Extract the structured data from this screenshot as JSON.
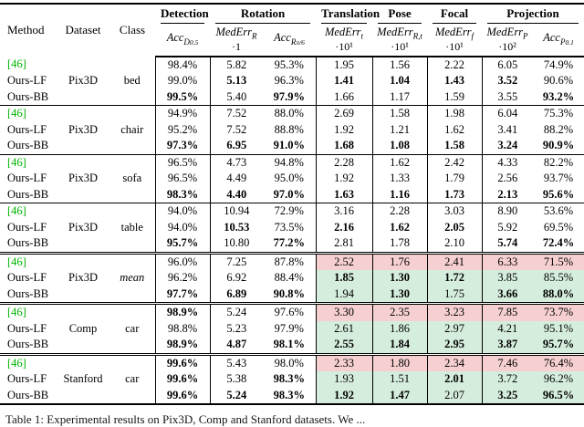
{
  "colors": {
    "cite_green": "#00b400",
    "highlight_red": "#f6d0d0",
    "highlight_green": "#d5eddd",
    "rule_black": "#000000",
    "background": "#ffffff"
  },
  "caption": "Table 1: Experimental results on Pix3D, Comp and Stanford datasets. We ...",
  "table": {
    "header": {
      "method": "Method",
      "dataset": "Dataset",
      "class": "Class",
      "groups": [
        {
          "label": "Detection",
          "span": 1
        },
        {
          "label": "Rotation",
          "span": 2
        },
        {
          "label": "Translation",
          "span": 1
        },
        {
          "label": "Pose",
          "span": 1
        },
        {
          "label": "Focal",
          "span": 1
        },
        {
          "label": "Projection",
          "span": 2
        }
      ],
      "cols": [
        {
          "key": "acc-d05",
          "fn": "Acc",
          "sub": "D",
          "ssub": "0.5",
          "mult": ""
        },
        {
          "key": "mederr-r",
          "fn": "MedErr",
          "sub": "R",
          "ssub": "",
          "mult": "·1"
        },
        {
          "key": "acc-r-pi6",
          "fn": "Acc",
          "sub": "R",
          "ssub": "π/6",
          "mult": ""
        },
        {
          "key": "mederr-t",
          "fn": "MedErr",
          "sub": "t",
          "ssub": "",
          "mult": "·10¹"
        },
        {
          "key": "mederr-rt",
          "fn": "MedErr",
          "sub": "R,t",
          "ssub": "",
          "mult": "·10¹"
        },
        {
          "key": "mederr-f",
          "fn": "MedErr",
          "sub": "f",
          "ssub": "",
          "mult": "·10¹"
        },
        {
          "key": "mederr-p",
          "fn": "MedErr",
          "sub": "P",
          "ssub": "",
          "mult": "·10²"
        },
        {
          "key": "acc-p01",
          "fn": "Acc",
          "sub": "P",
          "ssub": "0.1",
          "mult": ""
        }
      ]
    },
    "groups": [
      {
        "dataset": "Pix3D",
        "class": "bed",
        "italic_class": false,
        "highlight": false,
        "sep": "none",
        "rows": [
          {
            "method": "[46]",
            "cite": true,
            "vals": [
              "98.4%",
              "5.82",
              "95.3%",
              "1.95",
              "1.56",
              "2.22",
              "6.05",
              "74.9%"
            ],
            "bold": [
              0,
              0,
              0,
              0,
              0,
              0,
              0,
              0
            ]
          },
          {
            "method": "Ours-LF",
            "cite": false,
            "vals": [
              "99.0%",
              "5.13",
              "96.3%",
              "1.41",
              "1.04",
              "1.43",
              "3.52",
              "90.6%"
            ],
            "bold": [
              0,
              1,
              0,
              1,
              1,
              1,
              1,
              0
            ]
          },
          {
            "method": "Ours-BB",
            "cite": false,
            "vals": [
              "99.5%",
              "5.40",
              "97.9%",
              "1.66",
              "1.17",
              "1.59",
              "3.55",
              "93.2%"
            ],
            "bold": [
              1,
              0,
              1,
              0,
              0,
              0,
              0,
              1
            ]
          }
        ]
      },
      {
        "dataset": "Pix3D",
        "class": "chair",
        "italic_class": false,
        "highlight": false,
        "sep": "single",
        "rows": [
          {
            "method": "[46]",
            "cite": true,
            "vals": [
              "94.9%",
              "7.52",
              "88.0%",
              "2.69",
              "1.58",
              "1.98",
              "6.04",
              "75.3%"
            ],
            "bold": [
              0,
              0,
              0,
              0,
              0,
              0,
              0,
              0
            ]
          },
          {
            "method": "Ours-LF",
            "cite": false,
            "vals": [
              "95.2%",
              "7.52",
              "88.8%",
              "1.92",
              "1.21",
              "1.62",
              "3.41",
              "88.2%"
            ],
            "bold": [
              0,
              0,
              0,
              0,
              0,
              0,
              0,
              0
            ]
          },
          {
            "method": "Ours-BB",
            "cite": false,
            "vals": [
              "97.3%",
              "6.95",
              "91.0%",
              "1.68",
              "1.08",
              "1.58",
              "3.24",
              "90.9%"
            ],
            "bold": [
              1,
              1,
              1,
              1,
              1,
              1,
              1,
              1
            ]
          }
        ]
      },
      {
        "dataset": "Pix3D",
        "class": "sofa",
        "italic_class": false,
        "highlight": false,
        "sep": "single",
        "rows": [
          {
            "method": "[46]",
            "cite": true,
            "vals": [
              "96.5%",
              "4.73",
              "94.8%",
              "2.28",
              "1.62",
              "2.42",
              "4.33",
              "82.2%"
            ],
            "bold": [
              0,
              0,
              0,
              0,
              0,
              0,
              0,
              0
            ]
          },
          {
            "method": "Ours-LF",
            "cite": false,
            "vals": [
              "96.5%",
              "4.49",
              "95.0%",
              "1.92",
              "1.33",
              "1.79",
              "2.56",
              "93.7%"
            ],
            "bold": [
              0,
              0,
              0,
              0,
              0,
              0,
              0,
              0
            ]
          },
          {
            "method": "Ours-BB",
            "cite": false,
            "vals": [
              "98.3%",
              "4.40",
              "97.0%",
              "1.63",
              "1.16",
              "1.73",
              "2.13",
              "95.6%"
            ],
            "bold": [
              1,
              1,
              1,
              1,
              1,
              1,
              1,
              1
            ]
          }
        ]
      },
      {
        "dataset": "Pix3D",
        "class": "table",
        "italic_class": false,
        "highlight": false,
        "sep": "single",
        "rows": [
          {
            "method": "[46]",
            "cite": true,
            "vals": [
              "94.0%",
              "10.94",
              "72.9%",
              "3.16",
              "2.28",
              "3.03",
              "8.90",
              "53.6%"
            ],
            "bold": [
              0,
              0,
              0,
              0,
              0,
              0,
              0,
              0
            ]
          },
          {
            "method": "Ours-LF",
            "cite": false,
            "vals": [
              "94.0%",
              "10.53",
              "73.5%",
              "2.16",
              "1.62",
              "2.05",
              "5.92",
              "69.5%"
            ],
            "bold": [
              0,
              1,
              0,
              1,
              1,
              1,
              0,
              0
            ]
          },
          {
            "method": "Ours-BB",
            "cite": false,
            "vals": [
              "95.7%",
              "10.80",
              "77.2%",
              "2.81",
              "1.78",
              "2.10",
              "5.74",
              "72.4%"
            ],
            "bold": [
              1,
              0,
              1,
              0,
              0,
              0,
              1,
              1
            ]
          }
        ]
      },
      {
        "dataset": "Pix3D",
        "class": "mean",
        "italic_class": true,
        "highlight": true,
        "sep": "double",
        "rows": [
          {
            "method": "[46]",
            "cite": true,
            "vals": [
              "96.0%",
              "7.25",
              "87.8%",
              "2.52",
              "1.76",
              "2.41",
              "6.33",
              "71.5%"
            ],
            "bold": [
              0,
              0,
              0,
              0,
              0,
              0,
              0,
              0
            ]
          },
          {
            "method": "Ours-LF",
            "cite": false,
            "vals": [
              "96.2%",
              "6.92",
              "88.4%",
              "1.85",
              "1.30",
              "1.72",
              "3.85",
              "85.5%"
            ],
            "bold": [
              0,
              0,
              0,
              1,
              1,
              1,
              0,
              0
            ]
          },
          {
            "method": "Ours-BB",
            "cite": false,
            "vals": [
              "97.7%",
              "6.89",
              "90.8%",
              "1.94",
              "1.30",
              "1.75",
              "3.66",
              "88.0%"
            ],
            "bold": [
              1,
              1,
              1,
              0,
              1,
              0,
              1,
              1
            ]
          }
        ]
      },
      {
        "dataset": "Comp",
        "class": "car",
        "italic_class": false,
        "highlight": true,
        "sep": "double",
        "rows": [
          {
            "method": "[46]",
            "cite": true,
            "vals": [
              "98.9%",
              "5.24",
              "97.6%",
              "3.30",
              "2.35",
              "3.23",
              "7.85",
              "73.7%"
            ],
            "bold": [
              1,
              0,
              0,
              0,
              0,
              0,
              0,
              0
            ]
          },
          {
            "method": "Ours-LF",
            "cite": false,
            "vals": [
              "98.8%",
              "5.23",
              "97.9%",
              "2.61",
              "1.86",
              "2.97",
              "4.21",
              "95.1%"
            ],
            "bold": [
              0,
              0,
              0,
              0,
              0,
              0,
              0,
              0
            ]
          },
          {
            "method": "Ours-BB",
            "cite": false,
            "vals": [
              "98.9%",
              "4.87",
              "98.1%",
              "2.55",
              "1.84",
              "2.95",
              "3.87",
              "95.7%"
            ],
            "bold": [
              1,
              1,
              1,
              1,
              1,
              1,
              1,
              1
            ]
          }
        ]
      },
      {
        "dataset": "Stanford",
        "class": "car",
        "italic_class": false,
        "highlight": true,
        "sep": "double",
        "rows": [
          {
            "method": "[46]",
            "cite": true,
            "vals": [
              "99.6%",
              "5.43",
              "98.0%",
              "2.33",
              "1.80",
              "2.34",
              "7.46",
              "76.4%"
            ],
            "bold": [
              1,
              0,
              0,
              0,
              0,
              0,
              0,
              0
            ]
          },
          {
            "method": "Ours-LF",
            "cite": false,
            "vals": [
              "99.6%",
              "5.38",
              "98.3%",
              "1.93",
              "1.51",
              "2.01",
              "3.72",
              "96.2%"
            ],
            "bold": [
              1,
              0,
              1,
              0,
              0,
              1,
              0,
              0
            ]
          },
          {
            "method": "Ours-BB",
            "cite": false,
            "vals": [
              "99.6%",
              "5.24",
              "98.3%",
              "1.92",
              "1.47",
              "2.07",
              "3.25",
              "96.5%"
            ],
            "bold": [
              1,
              1,
              1,
              1,
              1,
              0,
              1,
              1
            ]
          }
        ]
      }
    ]
  }
}
